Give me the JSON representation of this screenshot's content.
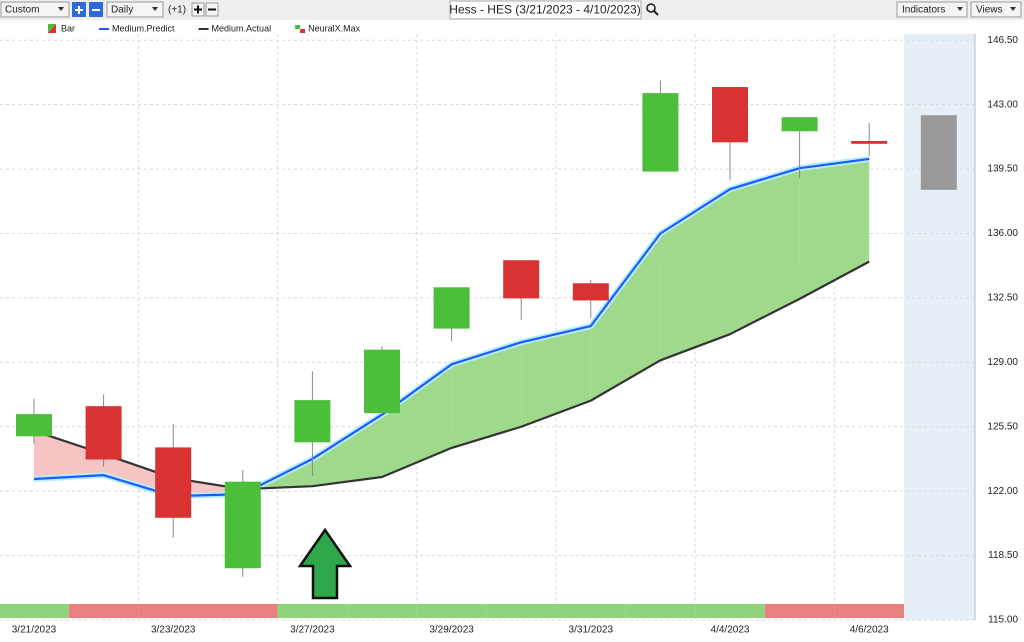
{
  "toolbar": {
    "range": "Custom",
    "period": "Daily",
    "offset": "(+1)",
    "title": "Hess - HES (3/21/2023 - 4/10/2023)",
    "indicators": "Indicators",
    "views": "Views"
  },
  "chart_data": {
    "type": "candlestick",
    "categories": [
      "3/21/2023",
      null,
      "3/23/2023",
      null,
      "3/27/2023",
      null,
      "3/29/2023",
      null,
      "3/31/2023",
      null,
      "4/4/2023",
      null,
      "4/6/2023",
      null
    ],
    "open": [
      125.01,
      126.59,
      124.35,
      117.84,
      124.68,
      126.27,
      130.86,
      134.52,
      133.27,
      139.39,
      143.93,
      141.58,
      141.0,
      138.4
    ],
    "high": [
      127.03,
      127.25,
      125.66,
      123.15,
      128.51,
      129.87,
      133.05,
      134.52,
      133.48,
      144.31,
      143.93,
      142.29,
      142.0,
      142.4
    ],
    "low": [
      124.57,
      123.31,
      119.48,
      117.35,
      122.82,
      126.2,
      130.15,
      131.3,
      131.4,
      139.39,
      138.9,
      139.0,
      140.2,
      138.4
    ],
    "close": [
      126.16,
      123.75,
      120.58,
      122.49,
      126.92,
      129.66,
      133.05,
      132.5,
      132.39,
      143.6,
      140.98,
      142.29,
      140.9,
      142.4
    ],
    "bar_colors": [
      "#4cbf3a",
      "#d93232",
      "#d93232",
      "#4cbf3a",
      "#4cbf3a",
      "#4cbf3a",
      "#4cbf3a",
      "#d93232",
      "#d93232",
      "#4cbf3a",
      "#d93232",
      "#4cbf3a",
      "#d93232",
      "#999999"
    ],
    "bar_name": "Bar",
    "series": [
      {
        "name": "Medium.Predict",
        "color": "#1a5cff",
        "values": [
          122.66,
          122.87,
          121.73,
          121.84,
          123.75,
          126.16,
          128.89,
          130.09,
          130.97,
          136.0,
          138.41,
          139.55,
          140.05,
          null
        ]
      },
      {
        "name": "Medium.Actual",
        "color": "#333333",
        "values": [
          125.28,
          124.02,
          122.71,
          122.11,
          122.27,
          122.77,
          124.35,
          125.5,
          126.92,
          129.11,
          130.53,
          132.45,
          134.47,
          null
        ]
      }
    ],
    "signal": {
      "name": "NeuralX.Max",
      "colors": [
        "#8fd47c",
        "#e88080",
        "#e88080",
        "#e88080",
        "#8fd47c",
        "#8fd47c",
        "#8fd47c",
        "#8fd47c",
        "#8fd47c",
        "#8fd47c",
        "#8fd47c",
        "#e88080",
        "#e88080",
        null
      ]
    },
    "fill_up_color": "#9ed98c",
    "fill_down_color": "#f6c4c4",
    "forecast_shade": "#e6eef7",
    "ylim": [
      115,
      147.6
    ],
    "yticks": [
      {
        "value": 115,
        "label": "115.00"
      },
      {
        "value": 118.5,
        "label": "118.50"
      },
      {
        "value": 122,
        "label": "122.00"
      },
      {
        "value": 125.5,
        "label": "125.50"
      },
      {
        "value": 129,
        "label": "129.00"
      },
      {
        "value": 132.5,
        "label": "132.50"
      },
      {
        "value": 136,
        "label": "136.00"
      },
      {
        "value": 139.5,
        "label": "139.50"
      },
      {
        "value": 143,
        "label": "143.00"
      },
      {
        "value": 146.5,
        "label": "146.50"
      }
    ],
    "grid": true
  }
}
